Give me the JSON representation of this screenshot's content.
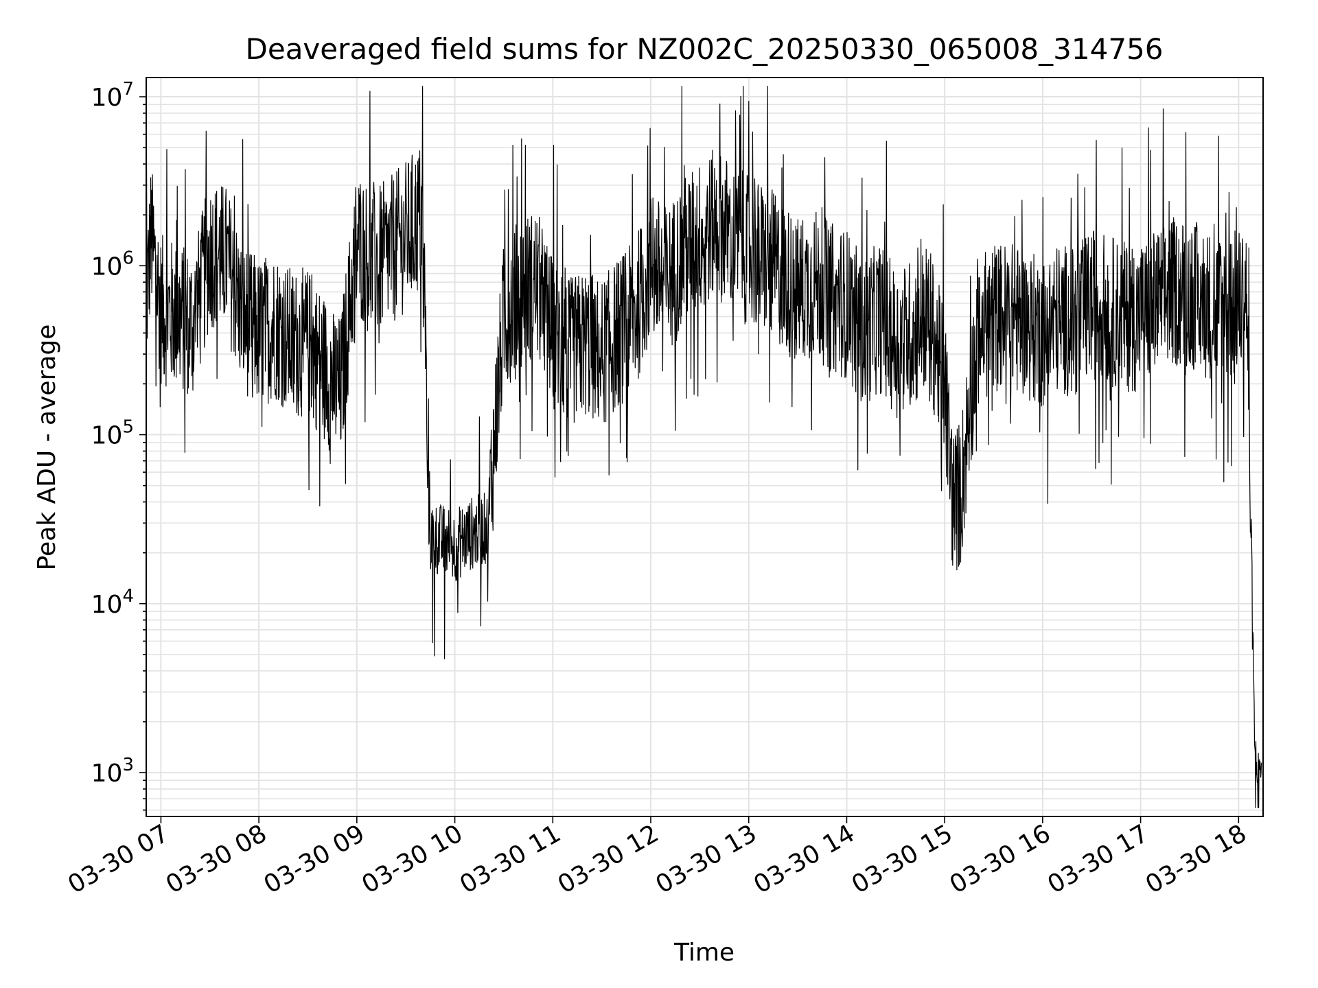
{
  "chart_data": {
    "type": "line",
    "title": "Deaveraged field sums for NZ002C_20250330_065008_314756",
    "xlabel": "Time",
    "ylabel": "Peak ADU - average",
    "yscale": "log",
    "ylim": [
      550,
      13000000
    ],
    "xlim": [
      "2025-03-30 06:51",
      "2025-03-30 18:15"
    ],
    "grid": true,
    "line_color": "#000000",
    "grid_color": "#e3e3e3",
    "x_ticks": [
      "03-30 07",
      "03-30 08",
      "03-30 09",
      "03-30 10",
      "03-30 11",
      "03-30 12",
      "03-30 13",
      "03-30 14",
      "03-30 15",
      "03-30 16",
      "03-30 17",
      "03-30 18"
    ],
    "y_ticks": [
      {
        "base": "10",
        "exp": "3",
        "value": 1000
      },
      {
        "base": "10",
        "exp": "4",
        "value": 10000
      },
      {
        "base": "10",
        "exp": "5",
        "value": 100000
      },
      {
        "base": "10",
        "exp": "6",
        "value": 1000000
      },
      {
        "base": "10",
        "exp": "7",
        "value": 10000000
      }
    ],
    "series": [
      {
        "x": [
          "2025-03-30 06:51",
          "2025-03-30 06:54",
          "2025-03-30 07:00",
          "2025-03-30 07:10",
          "2025-03-30 07:20",
          "2025-03-30 07:30",
          "2025-03-30 07:40",
          "2025-03-30 07:50",
          "2025-03-30 08:00",
          "2025-03-30 08:10",
          "2025-03-30 08:20",
          "2025-03-30 08:30",
          "2025-03-30 08:40",
          "2025-03-30 08:50",
          "2025-03-30 09:00",
          "2025-03-30 09:10",
          "2025-03-30 09:20",
          "2025-03-30 09:30",
          "2025-03-30 09:40",
          "2025-03-30 09:45",
          "2025-03-30 09:50",
          "2025-03-30 10:00",
          "2025-03-30 10:10",
          "2025-03-30 10:20",
          "2025-03-30 10:30",
          "2025-03-30 10:40",
          "2025-03-30 10:50",
          "2025-03-30 11:00",
          "2025-03-30 11:10",
          "2025-03-30 11:20",
          "2025-03-30 11:30",
          "2025-03-30 11:40",
          "2025-03-30 11:50",
          "2025-03-30 12:00",
          "2025-03-30 12:10",
          "2025-03-30 12:20",
          "2025-03-30 12:30",
          "2025-03-30 12:40",
          "2025-03-30 12:50",
          "2025-03-30 13:00",
          "2025-03-30 13:10",
          "2025-03-30 13:20",
          "2025-03-30 13:30",
          "2025-03-30 13:40",
          "2025-03-30 13:50",
          "2025-03-30 14:00",
          "2025-03-30 14:10",
          "2025-03-30 14:20",
          "2025-03-30 14:30",
          "2025-03-30 14:40",
          "2025-03-30 14:50",
          "2025-03-30 15:00",
          "2025-03-30 15:05",
          "2025-03-30 15:10",
          "2025-03-30 15:20",
          "2025-03-30 15:30",
          "2025-03-30 15:40",
          "2025-03-30 15:50",
          "2025-03-30 16:00",
          "2025-03-30 16:10",
          "2025-03-30 16:20",
          "2025-03-30 16:30",
          "2025-03-30 16:40",
          "2025-03-30 16:50",
          "2025-03-30 17:00",
          "2025-03-30 17:10",
          "2025-03-30 17:20",
          "2025-03-30 17:30",
          "2025-03-30 17:40",
          "2025-03-30 17:50",
          "2025-03-30 18:00",
          "2025-03-30 18:05",
          "2025-03-30 18:10",
          "2025-03-30 18:14"
        ],
        "y": [
          600000,
          1500000,
          550000,
          500000,
          450000,
          1200000,
          1100000,
          500000,
          400000,
          450000,
          350000,
          350000,
          250000,
          180000,
          1400000,
          1000000,
          1200000,
          1500000,
          2000000,
          25000,
          24000,
          22000,
          26000,
          28000,
          500000,
          700000,
          800000,
          400000,
          300000,
          350000,
          300000,
          400000,
          500000,
          1000000,
          800000,
          1200000,
          1500000,
          1800000,
          1500000,
          1200000,
          1100000,
          900000,
          700000,
          800000,
          650000,
          600000,
          400000,
          500000,
          350000,
          400000,
          500000,
          200000,
          40000,
          45000,
          400000,
          500000,
          500000,
          450000,
          400000,
          500000,
          450000,
          600000,
          550000,
          500000,
          500000,
          600000,
          700000,
          700000,
          600000,
          550000,
          600000,
          700000,
          1200,
          1100
        ]
      }
    ]
  }
}
